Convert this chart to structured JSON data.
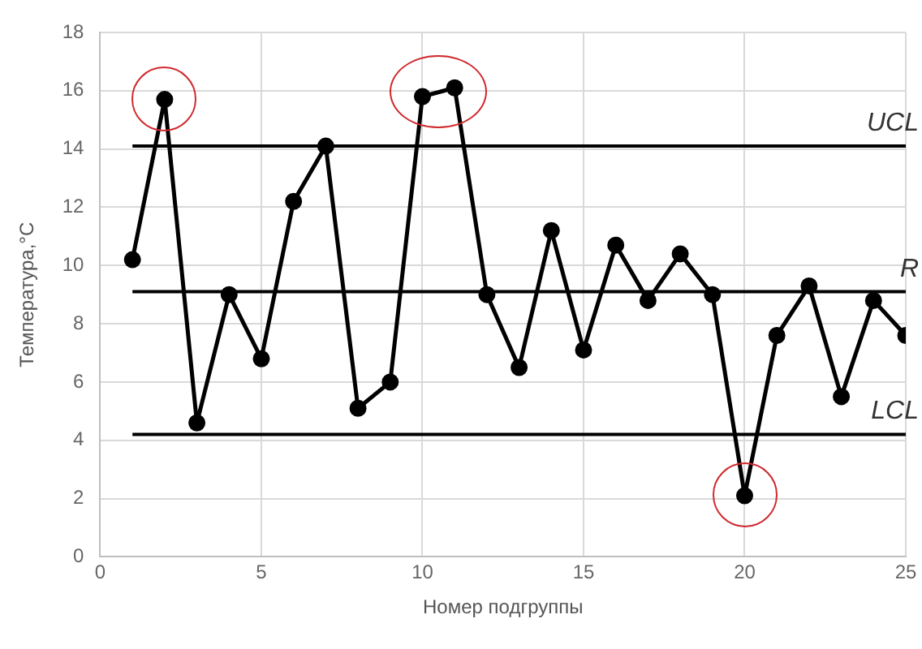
{
  "chart_data": {
    "type": "line",
    "xlabel": "Номер подгруппы",
    "ylabel": "Температура,°С",
    "x": [
      1,
      2,
      3,
      4,
      5,
      6,
      7,
      8,
      9,
      10,
      11,
      12,
      13,
      14,
      15,
      16,
      17,
      18,
      19,
      20,
      21,
      22,
      23,
      24,
      25
    ],
    "series": [
      {
        "color": "#000000",
        "values": [
          10.2,
          15.7,
          4.6,
          9.0,
          6.8,
          12.2,
          14.1,
          5.1,
          6.0,
          15.8,
          16.1,
          9.0,
          6.5,
          11.2,
          7.1,
          10.7,
          8.8,
          10.4,
          9.0,
          2.1,
          7.6,
          9.3,
          5.5,
          8.8,
          7.6
        ]
      }
    ],
    "xlim": [
      0,
      25
    ],
    "xticks": [
      0,
      5,
      10,
      15,
      20,
      25
    ],
    "ylim": [
      0,
      18
    ],
    "yticks": [
      0,
      2,
      4,
      6,
      8,
      10,
      12,
      14,
      16,
      18
    ],
    "ref_lines": [
      {
        "axis": "y",
        "value": 14.1,
        "label": "UCL",
        "color": "#000000"
      },
      {
        "axis": "y",
        "value": 9.1,
        "label": "R",
        "color": "#000000"
      },
      {
        "axis": "y",
        "value": 4.2,
        "label": "LCL",
        "color": "#000000"
      }
    ],
    "grid": true,
    "marker": "circle",
    "line_style": "solid",
    "legend": false
  }
}
